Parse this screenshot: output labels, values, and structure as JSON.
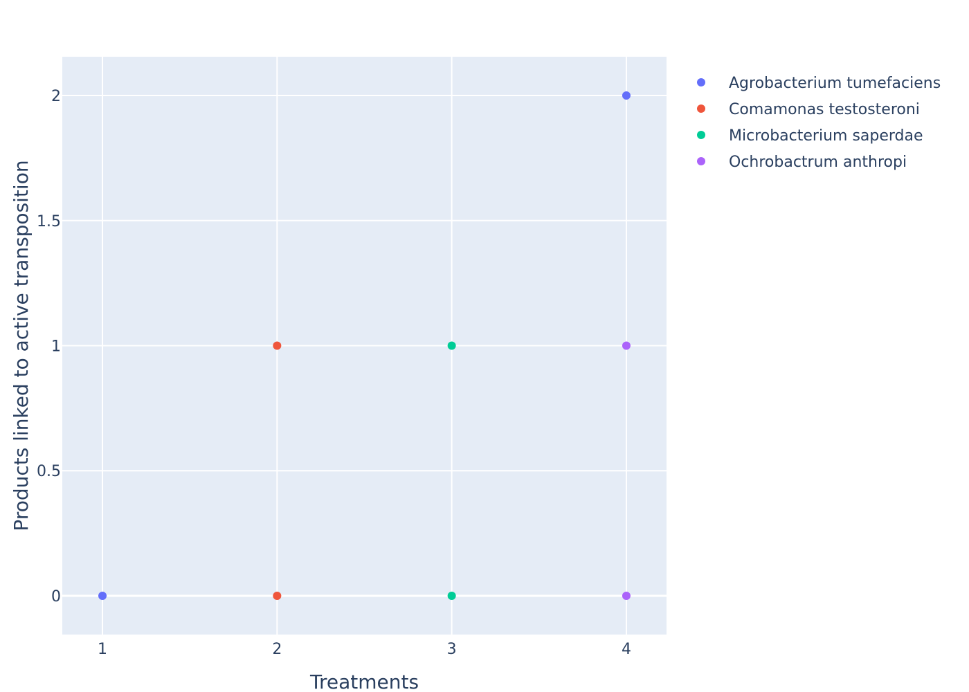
{
  "chart_data": {
    "type": "scatter",
    "title": "",
    "xlabel": "Treatments",
    "ylabel": "Products linked to active transposition",
    "xlim": [
      0.77,
      4.23
    ],
    "ylim": [
      -0.155,
      2.155
    ],
    "x_ticks": [
      1,
      2,
      3,
      4
    ],
    "y_ticks": [
      0,
      0.5,
      1,
      1.5,
      2
    ],
    "x_tick_labels": [
      "1",
      "2",
      "3",
      "4"
    ],
    "y_tick_labels": [
      "0",
      "0.5",
      "1",
      "1.5",
      "2"
    ],
    "grid": true,
    "legend_position": "top-right",
    "plot_background": "#e5ecf6",
    "series": [
      {
        "name": "Agrobacterium tumefaciens",
        "color": "#636efa",
        "x": [
          1,
          4
        ],
        "y": [
          0,
          2
        ]
      },
      {
        "name": "Comamonas testosteroni",
        "color": "#ef553b",
        "x": [
          2,
          2
        ],
        "y": [
          0,
          1
        ]
      },
      {
        "name": "Microbacterium saperdae",
        "color": "#00cc96",
        "x": [
          3,
          3
        ],
        "y": [
          0,
          1
        ]
      },
      {
        "name": "Ochrobactrum anthropi",
        "color": "#ab63fa",
        "x": [
          4,
          4
        ],
        "y": [
          0,
          1
        ]
      }
    ]
  }
}
